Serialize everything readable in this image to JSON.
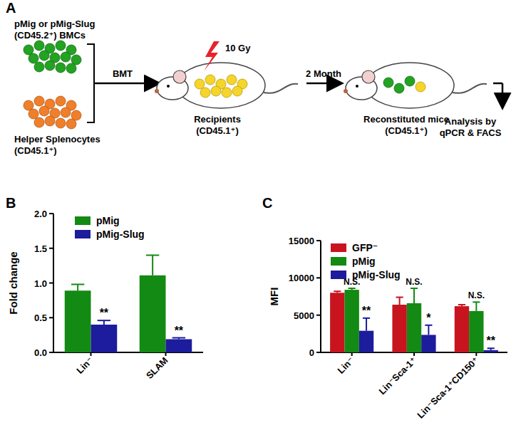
{
  "panel_labels": [
    "A",
    "B",
    "C"
  ],
  "diagram": {
    "nodes": [
      {
        "label": [
          "pMig or pMig-Slug",
          "(CD45.2⁺) BMCs"
        ]
      },
      {
        "label": [
          "Helper Splenocytes",
          "(CD45.1⁺)"
        ]
      },
      {
        "label": [
          "Recipients",
          "(CD45.1⁺)"
        ],
        "annotation": "10 Gy"
      },
      {
        "label": [
          "Reconstituted mice",
          "(CD45.1⁺)"
        ]
      },
      {
        "label": [
          "Analysis by",
          "qPCR & FACS"
        ]
      }
    ],
    "edges": [
      {
        "label": "BMT"
      },
      {
        "label": "2 Month"
      }
    ]
  },
  "chart_data": [
    {
      "type": "bar",
      "ylabel": "Fold change",
      "categories": [
        "Lin⁻",
        "SLAM"
      ],
      "series": [
        {
          "name": "pMig",
          "color": "#138a13",
          "values": [
            0.89,
            1.11
          ],
          "errors": [
            0.09,
            0.29
          ],
          "annotations": [
            null,
            null
          ]
        },
        {
          "name": "pMig-Slug",
          "color": "#1c1c9c",
          "values": [
            0.4,
            0.19
          ],
          "errors": [
            0.06,
            0.02
          ],
          "annotations": [
            "**",
            "**"
          ]
        }
      ],
      "ylim": [
        0,
        2.0
      ],
      "yticks": [
        {
          "value": 0,
          "label": "0.0"
        },
        0.5,
        {
          "value": 1,
          "label": "1.0"
        },
        1.5,
        {
          "value": 2,
          "label": "2.0"
        }
      ],
      "legend": "upper left"
    },
    {
      "type": "bar",
      "ylabel": "MFI",
      "categories": [
        "Lin⁻",
        "Lin⁻Sca-1⁺",
        "Lin⁻Sca-1⁺CD150⁺"
      ],
      "series": [
        {
          "name": "GFP⁻",
          "color": "#c8141e",
          "values": [
            8000,
            6400,
            6200
          ],
          "errors": [
            200,
            1000,
            200
          ],
          "annotations": [
            null,
            null,
            null
          ]
        },
        {
          "name": "pMig",
          "color": "#138a13",
          "values": [
            8400,
            6600,
            5550
          ],
          "errors": [
            200,
            2000,
            1200
          ],
          "annotations": [
            "N.S.",
            "N.S.",
            "N.S."
          ]
        },
        {
          "name": "pMig-Slug",
          "color": "#1c1c9c",
          "values": [
            2900,
            2350,
            300
          ],
          "errors": [
            1700,
            1300,
            250
          ],
          "annotations": [
            "**",
            "*",
            "**"
          ]
        }
      ],
      "ylim": [
        0,
        15000
      ],
      "yticks": [
        0,
        5000,
        10000,
        15000
      ],
      "legend": "upper left"
    }
  ]
}
